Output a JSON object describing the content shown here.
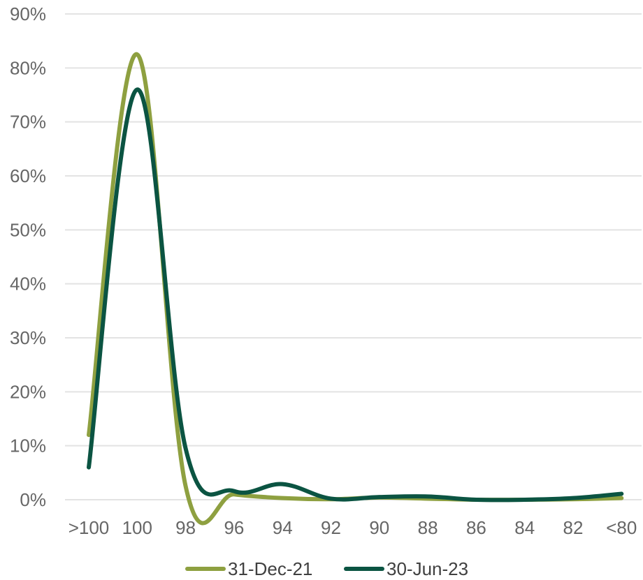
{
  "chart_data": {
    "type": "line",
    "title": "",
    "xlabel": "",
    "ylabel": "",
    "categories": [
      ">100",
      "100",
      "98",
      "96",
      "94",
      "92",
      "90",
      "88",
      "86",
      "84",
      "82",
      "<80"
    ],
    "y_tick_labels": [
      "0%",
      "10%",
      "20%",
      "30%",
      "40%",
      "50%",
      "60%",
      "70%",
      "80%",
      "90%"
    ],
    "ylim": [
      0,
      90
    ],
    "y_unit": "%",
    "grid": true,
    "smooth": true,
    "legend_position": "bottom",
    "series": [
      {
        "name": "31-Dec-21",
        "color": "#8ea040",
        "values": [
          12.0,
          82.5,
          2.5,
          1.0,
          0.3,
          0.1,
          0.4,
          0.2,
          0.0,
          0.0,
          0.1,
          0.3
        ]
      },
      {
        "name": "30-Jun-23",
        "color": "#0b5442",
        "values": [
          6.0,
          76.0,
          9.5,
          1.6,
          2.9,
          0.2,
          0.5,
          0.6,
          0.0,
          0.0,
          0.3,
          1.1
        ]
      }
    ]
  }
}
